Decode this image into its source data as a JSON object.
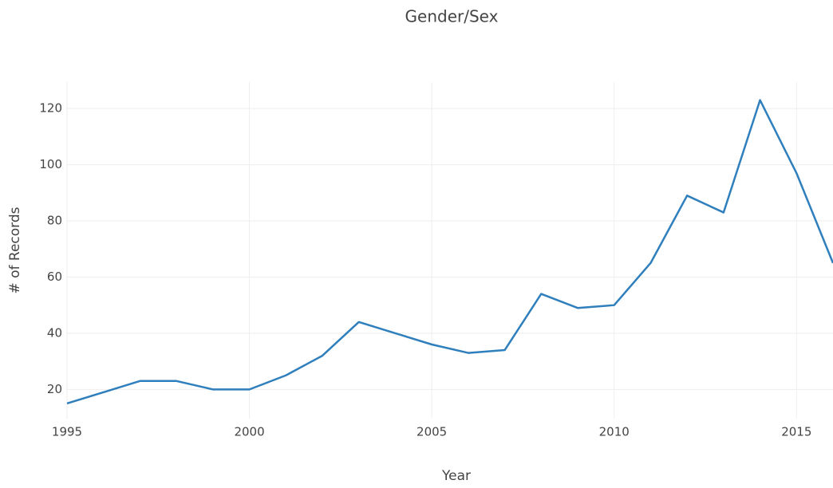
{
  "chart_data": {
    "type": "line",
    "title": "Gender/Sex",
    "x_label": "Year",
    "y_label": "# of Records",
    "x": [
      1995,
      1996,
      1997,
      1998,
      1999,
      2000,
      2001,
      2002,
      2003,
      2004,
      2005,
      2006,
      2007,
      2008,
      2009,
      2010,
      2011,
      2012,
      2013,
      2014,
      2015,
      2016
    ],
    "series": [
      {
        "name": "Gender/Sex",
        "color": "#2f7fbd",
        "values": [
          15,
          19,
          23,
          23,
          20,
          20,
          25,
          32,
          44,
          40,
          36,
          33,
          34,
          54,
          49,
          50,
          65,
          89,
          83,
          123,
          97,
          65
        ]
      }
    ],
    "xlim": [
      1995,
      2016
    ],
    "xticks": [
      1995,
      2000,
      2005,
      2010,
      2015
    ],
    "ylim": [
      9.6,
      129.4
    ],
    "yticks": [
      20,
      40,
      60,
      80,
      100,
      120
    ],
    "grid": true
  }
}
